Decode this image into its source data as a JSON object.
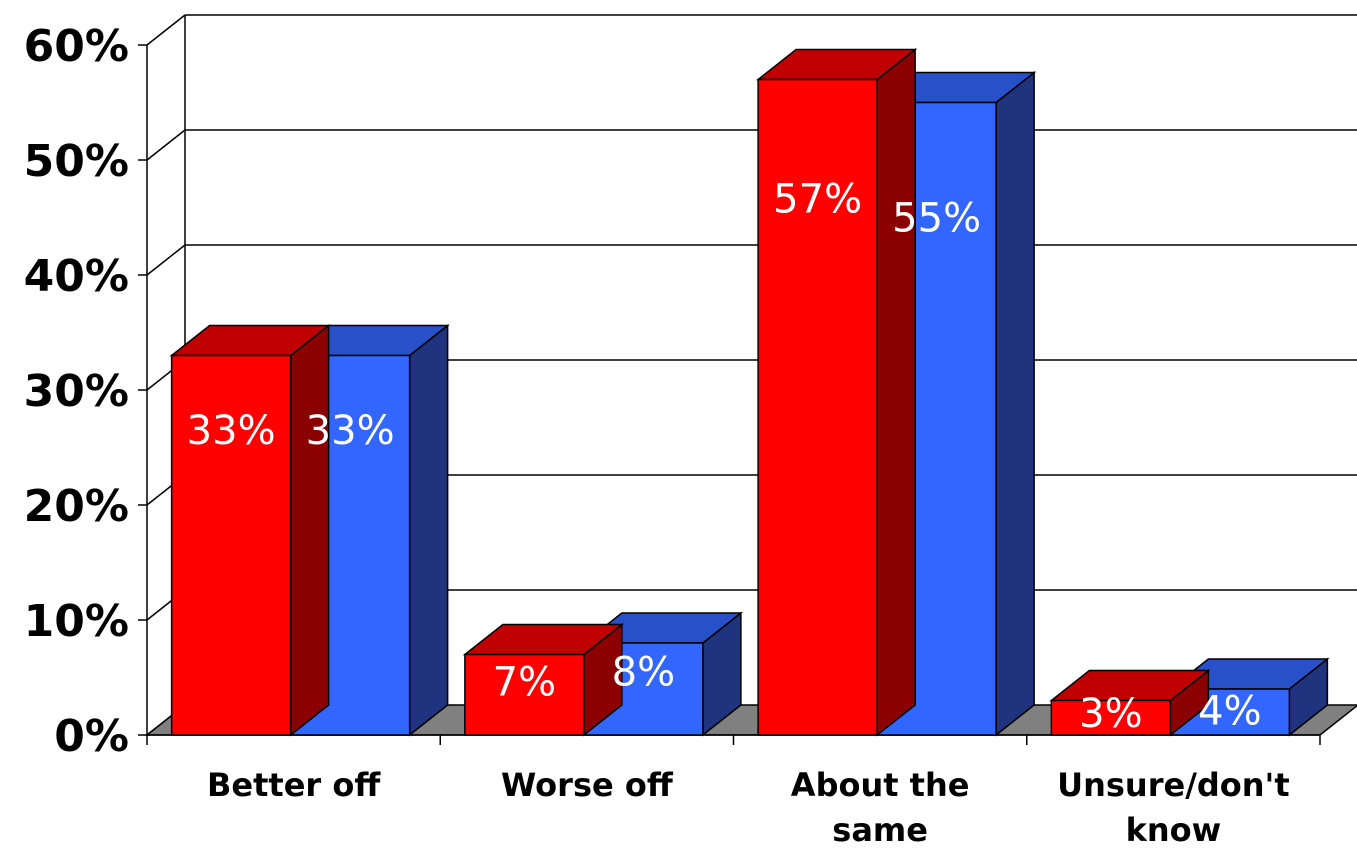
{
  "chart_data": {
    "type": "bar",
    "style": "3d-clustered",
    "categories": [
      [
        "Better off"
      ],
      [
        "Worse off"
      ],
      [
        "About the",
        "same"
      ],
      [
        "Unsure/don't",
        "know"
      ]
    ],
    "series": [
      {
        "values": [
          33,
          7,
          57,
          3
        ],
        "labels": [
          "33%",
          "7%",
          "57%",
          "3%"
        ],
        "color": "#FF0000",
        "top_color": "#C00000",
        "side_color": "#8B0000"
      },
      {
        "values": [
          33,
          8,
          55,
          4
        ],
        "labels": [
          "33%",
          "8%",
          "55%",
          "4%"
        ],
        "color": "#3366FF",
        "top_color": "#2850C8",
        "side_color": "#1F337F"
      }
    ],
    "ylim": [
      0,
      60
    ],
    "yticks": [
      "0%",
      "10%",
      "20%",
      "30%",
      "40%",
      "50%",
      "60%"
    ],
    "grid": true,
    "floor_color": "#808080",
    "legend": "none"
  }
}
